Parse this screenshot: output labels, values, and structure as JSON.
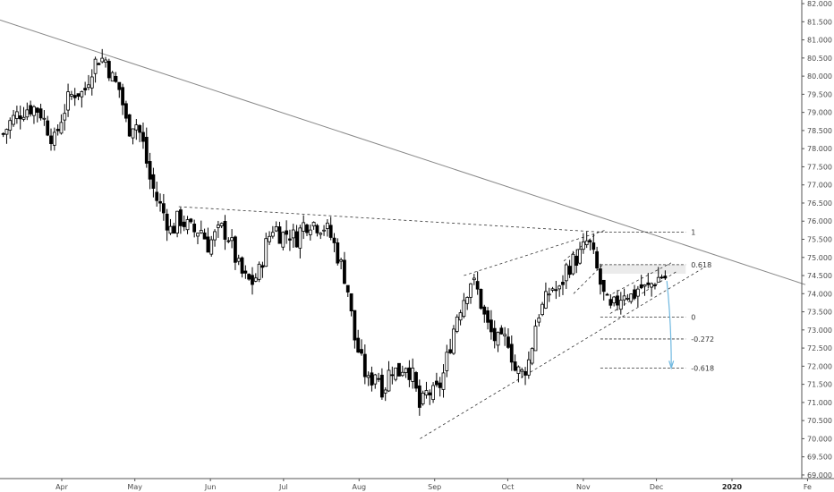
{
  "chart_data": {
    "type": "candlestick",
    "title": "",
    "xlabel": "",
    "ylabel": "",
    "ylim": [
      68.9,
      82.1
    ],
    "y_ticks": [
      "82.000",
      "81.500",
      "81.000",
      "80.500",
      "80.000",
      "79.500",
      "79.000",
      "78.500",
      "78.000",
      "77.500",
      "77.000",
      "76.500",
      "76.000",
      "75.500",
      "75.000",
      "74.500",
      "74.000",
      "73.500",
      "73.000",
      "72.500",
      "72.000",
      "71.500",
      "71.000",
      "70.500",
      "70.000",
      "69.500",
      "69.000"
    ],
    "x_ticks": [
      {
        "label": "Apr",
        "day": 0,
        "bold": false
      },
      {
        "label": "May",
        "day": 30,
        "bold": false
      },
      {
        "label": "Jun",
        "day": 61,
        "bold": false
      },
      {
        "label": "Jul",
        "day": 91,
        "bold": false
      },
      {
        "label": "Aug",
        "day": 122,
        "bold": false
      },
      {
        "label": "Sep",
        "day": 153,
        "bold": false
      },
      {
        "label": "Oct",
        "day": 183,
        "bold": false
      },
      {
        "label": "Nov",
        "day": 214,
        "bold": false
      },
      {
        "label": "Dec",
        "day": 244,
        "bold": false
      },
      {
        "label": "2020",
        "day": 275,
        "bold": true
      },
      {
        "label": "Fe",
        "day": 306,
        "bold": false
      }
    ],
    "xlim": [
      -24,
      310
    ],
    "grid": false,
    "series": [
      {
        "name": "",
        "points": [
          {
            "x": -24,
            "y": 78.4
          },
          {
            "x": -21,
            "y": 78.75
          },
          {
            "x": -18,
            "y": 78.95
          },
          {
            "x": -15,
            "y": 79.1
          },
          {
            "x": -12,
            "y": 79.15
          },
          {
            "x": -9,
            "y": 79.05
          },
          {
            "x": -6,
            "y": 78.6
          },
          {
            "x": -3,
            "y": 78.2
          },
          {
            "x": 0,
            "y": 78.9
          },
          {
            "x": 3,
            "y": 79.4
          },
          {
            "x": 6,
            "y": 79.6
          },
          {
            "x": 9,
            "y": 79.5
          },
          {
            "x": 12,
            "y": 80.2
          },
          {
            "x": 15,
            "y": 80.5
          },
          {
            "x": 18,
            "y": 80.45
          },
          {
            "x": 21,
            "y": 79.9
          },
          {
            "x": 24,
            "y": 79.6
          },
          {
            "x": 27,
            "y": 78.5
          },
          {
            "x": 30,
            "y": 78.8
          },
          {
            "x": 33,
            "y": 78.25
          },
          {
            "x": 36,
            "y": 77.2
          },
          {
            "x": 39,
            "y": 76.6
          },
          {
            "x": 42,
            "y": 76.2
          },
          {
            "x": 45,
            "y": 75.7
          },
          {
            "x": 48,
            "y": 76.1
          },
          {
            "x": 51,
            "y": 75.9
          },
          {
            "x": 54,
            "y": 75.7
          },
          {
            "x": 57,
            "y": 75.8
          },
          {
            "x": 60,
            "y": 75.35
          },
          {
            "x": 63,
            "y": 75.6
          },
          {
            "x": 66,
            "y": 75.8
          },
          {
            "x": 69,
            "y": 75.5
          },
          {
            "x": 72,
            "y": 74.8
          },
          {
            "x": 75,
            "y": 74.4
          },
          {
            "x": 78,
            "y": 74.3
          },
          {
            "x": 81,
            "y": 74.6
          },
          {
            "x": 84,
            "y": 75.4
          },
          {
            "x": 87,
            "y": 75.9
          },
          {
            "x": 90,
            "y": 75.6
          },
          {
            "x": 93,
            "y": 75.7
          },
          {
            "x": 96,
            "y": 75.5
          },
          {
            "x": 99,
            "y": 75.9
          },
          {
            "x": 102,
            "y": 76.0
          },
          {
            "x": 105,
            "y": 75.9
          },
          {
            "x": 108,
            "y": 75.85
          },
          {
            "x": 111,
            "y": 75.5
          },
          {
            "x": 114,
            "y": 74.9
          },
          {
            "x": 117,
            "y": 74.3
          },
          {
            "x": 120,
            "y": 72.8
          },
          {
            "x": 123,
            "y": 72.1
          },
          {
            "x": 126,
            "y": 71.5
          },
          {
            "x": 129,
            "y": 71.9
          },
          {
            "x": 132,
            "y": 71.3
          },
          {
            "x": 135,
            "y": 72.0
          },
          {
            "x": 138,
            "y": 71.8
          },
          {
            "x": 141,
            "y": 72.1
          },
          {
            "x": 144,
            "y": 71.7
          },
          {
            "x": 147,
            "y": 70.8
          },
          {
            "x": 150,
            "y": 71.3
          },
          {
            "x": 153,
            "y": 71.2
          },
          {
            "x": 156,
            "y": 71.6
          },
          {
            "x": 159,
            "y": 72.5
          },
          {
            "x": 162,
            "y": 73.4
          },
          {
            "x": 165,
            "y": 73.9
          },
          {
            "x": 168,
            "y": 74.4
          },
          {
            "x": 171,
            "y": 74.0
          },
          {
            "x": 174,
            "y": 73.2
          },
          {
            "x": 177,
            "y": 72.8
          },
          {
            "x": 180,
            "y": 72.6
          },
          {
            "x": 183,
            "y": 72.8
          },
          {
            "x": 186,
            "y": 71.9
          },
          {
            "x": 189,
            "y": 71.8
          },
          {
            "x": 192,
            "y": 72.2
          },
          {
            "x": 195,
            "y": 73.4
          },
          {
            "x": 198,
            "y": 73.7
          },
          {
            "x": 201,
            "y": 74.2
          },
          {
            "x": 204,
            "y": 74.0
          },
          {
            "x": 207,
            "y": 74.7
          },
          {
            "x": 210,
            "y": 74.9
          },
          {
            "x": 213,
            "y": 75.1
          },
          {
            "x": 216,
            "y": 75.5
          },
          {
            "x": 219,
            "y": 74.8
          },
          {
            "x": 222,
            "y": 74.0
          },
          {
            "x": 225,
            "y": 73.5
          },
          {
            "x": 228,
            "y": 73.8
          },
          {
            "x": 231,
            "y": 74.1
          },
          {
            "x": 234,
            "y": 73.9
          },
          {
            "x": 237,
            "y": 74.2
          },
          {
            "x": 240,
            "y": 74.1
          },
          {
            "x": 243,
            "y": 74.35
          },
          {
            "x": 246,
            "y": 74.5
          },
          {
            "x": 249,
            "y": 74.4
          }
        ]
      }
    ],
    "fibonacci": [
      {
        "label": "1",
        "value": 75.7
      },
      {
        "label": "0.618",
        "value": 74.8
      },
      {
        "label": "0",
        "value": 73.35
      },
      {
        "label": "-0.272",
        "value": 72.75
      },
      {
        "label": "-0.618",
        "value": 71.95
      }
    ],
    "colors": {
      "up": "#ffffff",
      "down": "#000000",
      "outline": "#000000",
      "trendline": "#888888",
      "dashed": "#333333",
      "arrow": "#6fb8e0",
      "axis": "#555555",
      "fib_zone": "#ebebeb"
    }
  }
}
